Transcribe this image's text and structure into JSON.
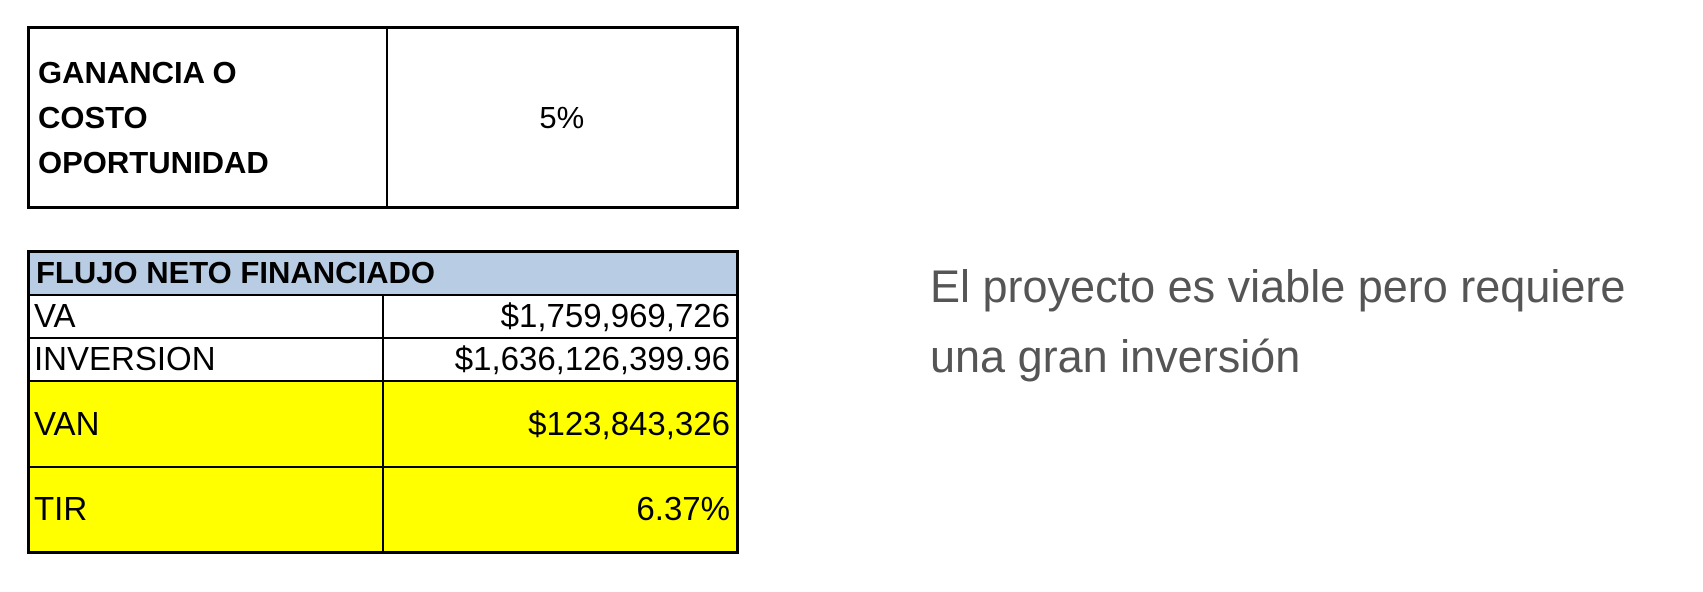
{
  "cost_table": {
    "label_lines": [
      "GANANCIA O",
      "COSTO",
      "OPORTUNIDAD"
    ],
    "value": "5%"
  },
  "flow_table": {
    "header": "FLUJO NETO FINANCIADO",
    "rows": [
      {
        "label": "VA",
        "value": "$1,759,969,726"
      },
      {
        "label": "INVERSION",
        "value": "$1,636,126,399.96"
      },
      {
        "label": "VAN",
        "value": "$123,843,326"
      },
      {
        "label": "TIR",
        "value": "6.37%"
      }
    ]
  },
  "note": {
    "text": "El proyecto es viable pero requiere una gran inversión"
  },
  "colors": {
    "header_bg": "#b8cce4",
    "highlight_bg": "#ffff00",
    "note_text": "#555555"
  }
}
